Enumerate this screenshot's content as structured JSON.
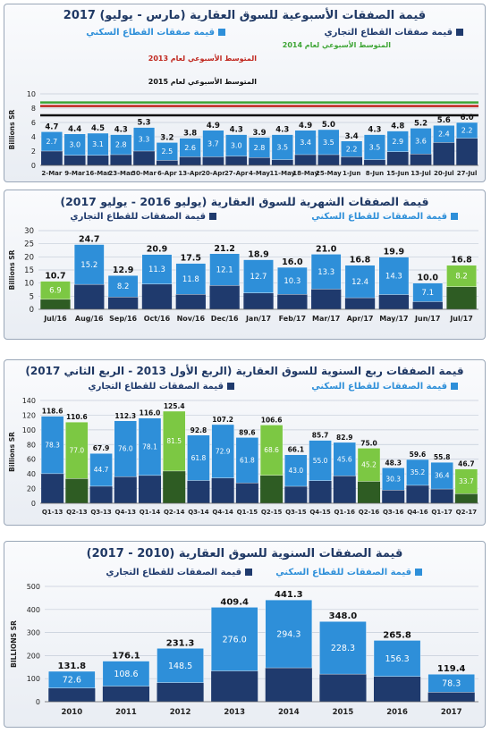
{
  "colors": {
    "commercial": "#1f3a6d",
    "residential": "#2e8fd9",
    "highlight_residential": "#7cc843",
    "highlight_commercial": "#2e5c23",
    "avg2013": "#c0261e",
    "avg2014": "#3da535",
    "avg2015": "#111111",
    "title": "#1f3864"
  },
  "chart_data": [
    {
      "type": "bar",
      "title": "قيمة الصفقات الأسبوعية للسوق العقارية (مارس - يوليو) 2017",
      "ylabel": "Billions SR",
      "ylim": [
        0,
        10
      ],
      "yticks": [
        "0",
        "2",
        "4",
        "6",
        "8",
        "10"
      ],
      "grid": true,
      "legend": {
        "commercial": "قيمة صفقات القطاع التجاري",
        "residential": "قيمة صفقات القطاع السكني"
      },
      "avg_lines": [
        {
          "label": "المتوسط الأسبوعي لعام 2014",
          "value": 8.8,
          "color_key": "avg2014"
        },
        {
          "label": "المتوسط الأسبوعي لعام 2013",
          "value": 8.3,
          "color_key": "avg2013"
        },
        {
          "label": "المتوسط الأسبوعي لعام 2015",
          "value": 7.0,
          "color_key": "avg2015"
        }
      ],
      "categories": [
        "2-Mar",
        "9-Mar",
        "16-Mar",
        "23-Mar",
        "30-Mar",
        "6-Apr",
        "13-Apr",
        "20-Apr",
        "27-Apr",
        "4-May",
        "11-May",
        "18-May",
        "25-May",
        "1-Jun",
        "8-Jun",
        "15-Jun",
        "13-Jul",
        "20-Jul",
        "27-Jul"
      ],
      "totals": [
        4.7,
        4.4,
        4.5,
        4.3,
        5.3,
        3.2,
        3.8,
        4.9,
        4.3,
        3.9,
        4.3,
        4.9,
        5.0,
        3.4,
        4.3,
        4.8,
        5.2,
        5.6,
        6.0
      ],
      "residential": [
        2.7,
        3.0,
        3.1,
        2.8,
        3.3,
        2.5,
        2.6,
        3.7,
        3.0,
        2.8,
        3.5,
        3.4,
        3.5,
        2.2,
        3.5,
        2.9,
        3.6,
        2.4,
        2.2
      ],
      "highlight": []
    },
    {
      "type": "bar",
      "title": "قيمة الصفقات الشهرية للسوق العقارية (يوليو 2016 - يوليو 2017)",
      "ylabel": "Billions SR",
      "ylim": [
        0,
        30
      ],
      "yticks": [
        "0",
        "5",
        "10",
        "15",
        "20",
        "25",
        "30"
      ],
      "grid": true,
      "legend": {
        "commercial": "قيمة الصفقات للقطاع التجاري",
        "residential": "قيمة الصفقات للقطاع السكني"
      },
      "categories": [
        "Jul/16",
        "Aug/16",
        "Sep/16",
        "Oct/16",
        "Nov/16",
        "Dec/16",
        "Jan/17",
        "Feb/17",
        "Mar/17",
        "Apr/17",
        "May/17",
        "Jun/17",
        "Jul/17"
      ],
      "totals": [
        10.7,
        24.7,
        12.9,
        20.9,
        17.5,
        21.2,
        18.9,
        16.0,
        21.0,
        16.8,
        19.9,
        10.0,
        16.8
      ],
      "residential": [
        6.9,
        15.2,
        8.2,
        11.3,
        11.8,
        12.1,
        12.7,
        10.3,
        13.3,
        12.4,
        14.3,
        7.1,
        8.2
      ],
      "highlight": [
        0,
        12
      ]
    },
    {
      "type": "bar",
      "title": "قيمة الصفقات ربع السنوية للسوق العقارية (الربع الأول 2013 - الربع الثاني 2017)",
      "ylabel": "Billions SR",
      "ylim": [
        0,
        140
      ],
      "yticks": [
        "0",
        "20",
        "40",
        "60",
        "80",
        "100",
        "120",
        "140"
      ],
      "grid": true,
      "legend": {
        "commercial": "قيمة الصفقات للقطاع التجاري",
        "residential": "قيمة الصفقات للقطاع السكني"
      },
      "categories": [
        "Q1-13",
        "Q2-13",
        "Q3-13",
        "Q4-13",
        "Q1-14",
        "Q2-14",
        "Q3-14",
        "Q4-14",
        "Q1-15",
        "Q2-15",
        "Q3-15",
        "Q4-15",
        "Q1-16",
        "Q2-16",
        "Q3-16",
        "Q4-16",
        "Q1-17",
        "Q2-17"
      ],
      "totals": [
        118.6,
        110.6,
        67.9,
        112.3,
        116.0,
        125.4,
        92.8,
        107.2,
        89.6,
        106.6,
        66.1,
        85.7,
        82.9,
        75.0,
        48.3,
        59.6,
        55.8,
        46.7
      ],
      "residential": [
        78.3,
        77.0,
        44.7,
        76.0,
        78.1,
        81.5,
        61.8,
        72.9,
        61.8,
        68.6,
        43.0,
        55.0,
        45.6,
        45.2,
        30.3,
        35.2,
        36.4,
        33.7
      ],
      "highlight": [
        1,
        5,
        9,
        13,
        17
      ]
    },
    {
      "type": "bar",
      "title": "قيمة الصفقات السنوية للسوق العقارية (2010 - 2017)",
      "ylabel": "BILLIONS SR",
      "ylim": [
        0,
        500
      ],
      "yticks": [
        "0",
        "100",
        "200",
        "300",
        "400",
        "500"
      ],
      "grid": true,
      "legend": {
        "commercial": "قيمة الصفقات للقطاع التجاري",
        "residential": "قيمة الصفقات للقطاع السكني"
      },
      "categories": [
        "2010",
        "2011",
        "2012",
        "2013",
        "2014",
        "2015",
        "2016",
        "2017"
      ],
      "totals": [
        131.8,
        176.1,
        231.3,
        409.4,
        441.3,
        348.0,
        265.8,
        119.4
      ],
      "residential": [
        72.6,
        108.6,
        148.5,
        276.0,
        294.3,
        228.3,
        156.3,
        78.3
      ],
      "highlight": []
    }
  ]
}
